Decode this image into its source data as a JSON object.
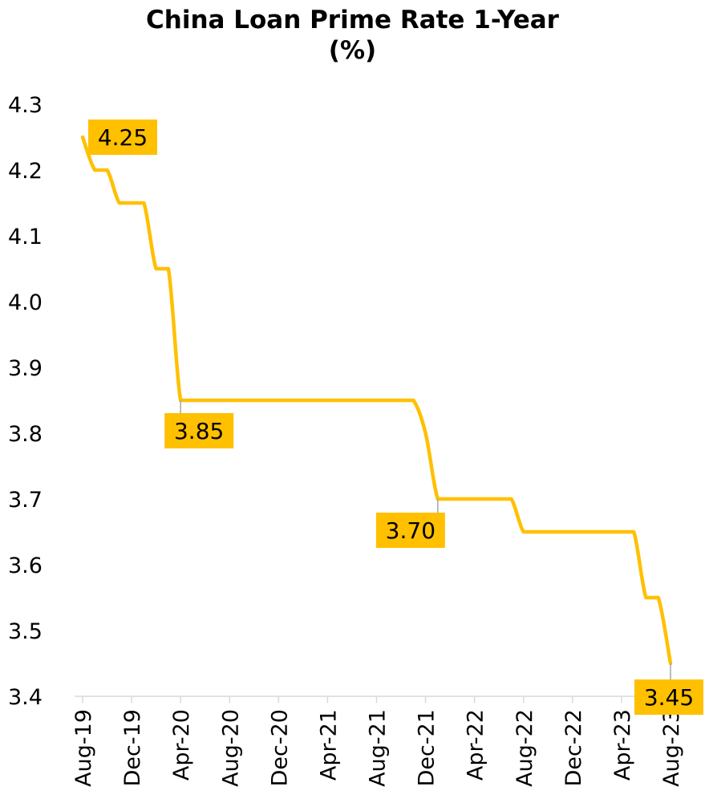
{
  "chart_data": {
    "type": "line",
    "title": "China Loan Prime Rate 1-Year",
    "subtitle": "(%)",
    "xlabel": "",
    "ylabel": "",
    "ylim": [
      3.4,
      4.3
    ],
    "yticks": [
      "4.3",
      "4.2",
      "4.1",
      "4.0",
      "3.9",
      "3.8",
      "3.7",
      "3.6",
      "3.5",
      "3.4"
    ],
    "xticks": [
      "Aug-19",
      "Dec-19",
      "Apr-20",
      "Aug-20",
      "Dec-20",
      "Apr-21",
      "Aug-21",
      "Dec-21",
      "Apr-22",
      "Aug-22",
      "Dec-22",
      "Apr-23",
      "Aug-23"
    ],
    "grid": false,
    "line_color": "#FFC000",
    "label_bg": "#FFC000",
    "x": [
      "Aug-19",
      "Sep-19",
      "Oct-19",
      "Nov-19",
      "Dec-19",
      "Jan-20",
      "Feb-20",
      "Mar-20",
      "Apr-20",
      "May-20",
      "Jun-20",
      "Jul-20",
      "Aug-20",
      "Sep-20",
      "Oct-20",
      "Nov-20",
      "Dec-20",
      "Jan-21",
      "Feb-21",
      "Mar-21",
      "Apr-21",
      "May-21",
      "Jun-21",
      "Jul-21",
      "Aug-21",
      "Sep-21",
      "Oct-21",
      "Nov-21",
      "Dec-21",
      "Jan-22",
      "Feb-22",
      "Mar-22",
      "Apr-22",
      "May-22",
      "Jun-22",
      "Jul-22",
      "Aug-22",
      "Sep-22",
      "Oct-22",
      "Nov-22",
      "Dec-22",
      "Jan-23",
      "Feb-23",
      "Mar-23",
      "Apr-23",
      "May-23",
      "Jun-23",
      "Jul-23",
      "Aug-23"
    ],
    "series": [
      {
        "values": [
          4.25,
          4.2,
          4.2,
          4.15,
          4.15,
          4.15,
          4.05,
          4.05,
          3.85,
          3.85,
          3.85,
          3.85,
          3.85,
          3.85,
          3.85,
          3.85,
          3.85,
          3.85,
          3.85,
          3.85,
          3.85,
          3.85,
          3.85,
          3.85,
          3.85,
          3.85,
          3.85,
          3.85,
          3.8,
          3.7,
          3.7,
          3.7,
          3.7,
          3.7,
          3.7,
          3.7,
          3.65,
          3.65,
          3.65,
          3.65,
          3.65,
          3.65,
          3.65,
          3.65,
          3.65,
          3.65,
          3.55,
          3.55,
          3.45
        ]
      }
    ],
    "annotations": [
      {
        "x_index": 0,
        "text": "4.25"
      },
      {
        "x_index": 8,
        "text": "3.85"
      },
      {
        "x_index": 29,
        "text": "3.70"
      },
      {
        "x_index": 48,
        "text": "3.45"
      }
    ]
  }
}
